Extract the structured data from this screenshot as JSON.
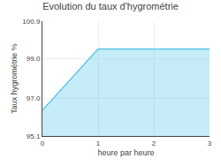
{
  "chart_data": {
    "type": "area",
    "title": "Evolution du taux d'hygrométrie",
    "xlabel": "heure par heure",
    "ylabel": "Taux hygrométrie %",
    "x": [
      0,
      1,
      2,
      3
    ],
    "values": [
      96.4,
      99.5,
      99.5,
      99.5
    ],
    "xlim": [
      0,
      3
    ],
    "ylim": [
      95.1,
      100.9
    ],
    "xticks": [
      0,
      1,
      2,
      3
    ],
    "yticks": [
      95.1,
      {
        "value": 97.0,
        "label": "97.0"
      },
      {
        "value": 99.0,
        "label": "99.0"
      },
      100.9
    ],
    "color": "#5bc8e8",
    "grid": true
  }
}
